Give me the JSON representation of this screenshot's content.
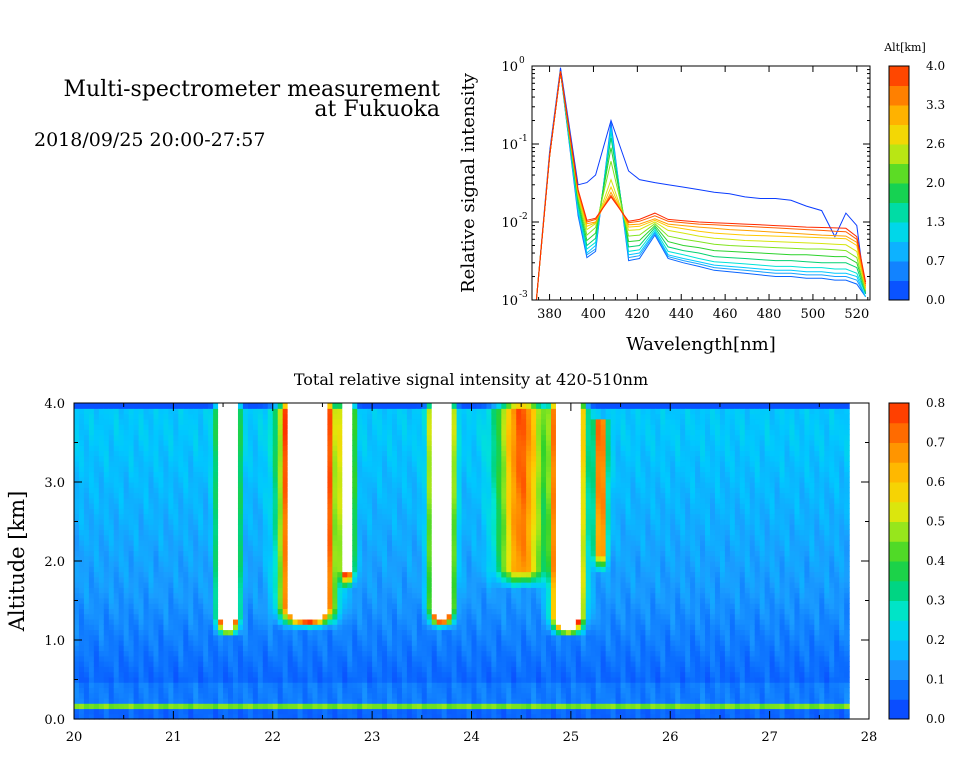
{
  "header": {
    "title_line1": "Multi-spectrometer measurement",
    "title_line2": "at Fukuoka",
    "datetime": "2018/09/25 20:00-27:57"
  },
  "colors": {
    "scale": [
      "#0a3cff",
      "#0a6aff",
      "#1a9cff",
      "#00c8ff",
      "#00e6d2",
      "#00d278",
      "#2cd22c",
      "#8ce61e",
      "#e6e60a",
      "#ffc800",
      "#ff9c00",
      "#ff6400",
      "#ff2a00"
    ],
    "overflow": "#ffffff",
    "frame": "#000000"
  },
  "chart_data": [
    {
      "type": "line",
      "xlabel": "Wavelength[nm]",
      "ylabel": "Relative signal intensity",
      "scale": "log-y",
      "xlim": [
        372,
        526
      ],
      "ylim": [
        0.001,
        1
      ],
      "xticks": [
        380,
        400,
        420,
        440,
        460,
        480,
        500,
        520
      ],
      "yticks": [
        {
          "value": 0.001,
          "base": "10",
          "exp": "-3"
        },
        {
          "value": 0.01,
          "base": "10",
          "exp": "-2"
        },
        {
          "value": 0.1,
          "base": "10",
          "exp": "-1"
        },
        {
          "value": 1,
          "base": "10",
          "exp": "0"
        }
      ],
      "x": [
        374,
        380,
        385,
        393,
        397,
        401,
        408,
        416,
        421,
        428,
        434,
        441,
        448,
        455,
        462,
        469,
        476,
        483,
        490,
        497,
        504,
        510,
        515,
        520,
        524
      ],
      "colorbar": {
        "label": "Alt[km]",
        "range": [
          0,
          4
        ],
        "ticks": [
          "0.0",
          "0.7",
          "1.3",
          "2.0",
          "2.6",
          "3.3",
          "4.0"
        ]
      },
      "series": [
        {
          "alt": 0.0,
          "values": [
            0.001,
            0.08,
            0.95,
            0.03,
            0.032,
            0.04,
            0.2,
            0.045,
            0.035,
            0.032,
            0.03,
            0.028,
            0.026,
            0.024,
            0.023,
            0.021,
            0.02,
            0.02,
            0.019,
            0.016,
            0.014,
            0.0065,
            0.013,
            0.009,
            0.0012
          ]
        },
        {
          "alt": 0.3,
          "values": [
            0.001,
            0.07,
            0.85,
            0.012,
            0.0035,
            0.0042,
            0.19,
            0.0032,
            0.0034,
            0.0068,
            0.0034,
            0.003,
            0.0027,
            0.0024,
            0.0023,
            0.0022,
            0.0021,
            0.002,
            0.002,
            0.0019,
            0.0019,
            0.0018,
            0.0018,
            0.0016,
            0.0011
          ]
        },
        {
          "alt": 0.7,
          "values": [
            0.001,
            0.07,
            0.85,
            0.013,
            0.0038,
            0.0045,
            0.17,
            0.0035,
            0.0037,
            0.0072,
            0.0036,
            0.0032,
            0.0029,
            0.0026,
            0.0025,
            0.0024,
            0.0023,
            0.0022,
            0.0022,
            0.0021,
            0.0021,
            0.002,
            0.002,
            0.0018,
            0.0011
          ]
        },
        {
          "alt": 1.0,
          "values": [
            0.001,
            0.07,
            0.85,
            0.014,
            0.004,
            0.005,
            0.16,
            0.0038,
            0.004,
            0.0075,
            0.0038,
            0.0034,
            0.0031,
            0.0028,
            0.0027,
            0.0026,
            0.0025,
            0.0024,
            0.0024,
            0.0023,
            0.0023,
            0.0022,
            0.0022,
            0.002,
            0.0011
          ]
        },
        {
          "alt": 1.3,
          "values": [
            0.001,
            0.07,
            0.85,
            0.015,
            0.0045,
            0.0055,
            0.14,
            0.0042,
            0.0044,
            0.008,
            0.0042,
            0.0038,
            0.0034,
            0.0031,
            0.003,
            0.0029,
            0.0028,
            0.0027,
            0.0027,
            0.0026,
            0.0026,
            0.0025,
            0.0025,
            0.0022,
            0.0012
          ]
        },
        {
          "alt": 1.7,
          "values": [
            0.001,
            0.07,
            0.85,
            0.017,
            0.005,
            0.0062,
            0.12,
            0.0048,
            0.005,
            0.0085,
            0.0048,
            0.0043,
            0.004,
            0.0036,
            0.0035,
            0.0034,
            0.0033,
            0.0032,
            0.0032,
            0.0031,
            0.003,
            0.003,
            0.003,
            0.0026,
            0.0012
          ]
        },
        {
          "alt": 2.0,
          "values": [
            0.001,
            0.07,
            0.85,
            0.019,
            0.0058,
            0.0072,
            0.09,
            0.0056,
            0.0058,
            0.009,
            0.0056,
            0.005,
            0.0047,
            0.0043,
            0.0042,
            0.0041,
            0.004,
            0.0039,
            0.0038,
            0.0038,
            0.0037,
            0.0036,
            0.0036,
            0.003,
            0.0013
          ]
        },
        {
          "alt": 2.3,
          "values": [
            0.001,
            0.07,
            0.85,
            0.021,
            0.0068,
            0.0085,
            0.06,
            0.0066,
            0.0068,
            0.0095,
            0.0066,
            0.006,
            0.0056,
            0.0052,
            0.005,
            0.0049,
            0.0048,
            0.0047,
            0.0046,
            0.0045,
            0.0045,
            0.0044,
            0.0043,
            0.0035,
            0.0013
          ]
        },
        {
          "alt": 2.6,
          "values": [
            0.001,
            0.07,
            0.85,
            0.022,
            0.008,
            0.0095,
            0.035,
            0.0078,
            0.008,
            0.01,
            0.0078,
            0.0072,
            0.0066,
            0.0062,
            0.006,
            0.0058,
            0.0057,
            0.0056,
            0.0055,
            0.0054,
            0.0053,
            0.0052,
            0.0051,
            0.0042,
            0.0014
          ]
        },
        {
          "alt": 3.0,
          "values": [
            0.001,
            0.07,
            0.85,
            0.023,
            0.0088,
            0.0098,
            0.028,
            0.0086,
            0.0088,
            0.0105,
            0.0088,
            0.0082,
            0.0076,
            0.0072,
            0.007,
            0.0068,
            0.0067,
            0.0066,
            0.0065,
            0.0064,
            0.0063,
            0.0062,
            0.0061,
            0.005,
            0.0014
          ]
        },
        {
          "alt": 3.3,
          "values": [
            0.001,
            0.07,
            0.85,
            0.024,
            0.0095,
            0.01,
            0.024,
            0.0092,
            0.0094,
            0.011,
            0.0094,
            0.009,
            0.0086,
            0.0083,
            0.008,
            0.0078,
            0.0076,
            0.0074,
            0.0072,
            0.007,
            0.0068,
            0.0067,
            0.0066,
            0.0055,
            0.0015
          ]
        },
        {
          "alt": 3.7,
          "values": [
            0.001,
            0.07,
            0.85,
            0.025,
            0.01,
            0.0108,
            0.022,
            0.0098,
            0.0102,
            0.012,
            0.0102,
            0.0098,
            0.0094,
            0.0092,
            0.009,
            0.0088,
            0.0086,
            0.0084,
            0.0082,
            0.008,
            0.0078,
            0.0076,
            0.0075,
            0.006,
            0.0016
          ]
        },
        {
          "alt": 4.0,
          "values": [
            0.001,
            0.07,
            0.85,
            0.026,
            0.0105,
            0.0112,
            0.021,
            0.0102,
            0.0108,
            0.013,
            0.0108,
            0.0104,
            0.01,
            0.0098,
            0.0096,
            0.0094,
            0.0092,
            0.009,
            0.0088,
            0.0086,
            0.0085,
            0.0084,
            0.0083,
            0.0065,
            0.0017
          ]
        }
      ]
    },
    {
      "type": "heatmap",
      "title": "Total relative signal intensity at 420-510nm",
      "xlabel": "",
      "ylabel": "Altitude [km]",
      "xlim": [
        20,
        28
      ],
      "ylim": [
        0,
        4
      ],
      "data_x_range": [
        20,
        27.8
      ],
      "xticks": [
        "20",
        "21",
        "22",
        "23",
        "24",
        "25",
        "26",
        "27",
        "28"
      ],
      "yticks": [
        "0.0",
        "1.0",
        "2.0",
        "3.0",
        "4.0"
      ],
      "colorbar": {
        "range": [
          0,
          0.8
        ],
        "ticks": [
          "0.0",
          "0.1",
          "0.2",
          "0.3",
          "0.4",
          "0.5",
          "0.6",
          "0.7",
          "0.8"
        ]
      },
      "background": {
        "low": 0.06,
        "mid": 0.13,
        "upper": 0.2,
        "surface_band": 0.45
      },
      "plumes": [
        {
          "t": 21.55,
          "half_width_hours": 0.08,
          "base_km": 1.2,
          "top_km": 4.0,
          "peak": 2.0
        },
        {
          "t": 22.35,
          "half_width_hours": 0.2,
          "base_km": 1.3,
          "top_km": 4.0,
          "peak": 2.0
        },
        {
          "t": 22.75,
          "half_width_hours": 0.06,
          "base_km": 1.8,
          "top_km": 4.0,
          "peak": 0.9
        },
        {
          "t": 23.7,
          "half_width_hours": 0.09,
          "base_km": 1.3,
          "top_km": 4.0,
          "peak": 2.0
        },
        {
          "t": 24.5,
          "half_width_hours": 0.22,
          "base_km": 1.8,
          "top_km": 4.0,
          "peak": 0.55
        },
        {
          "t": 24.97,
          "half_width_hours": 0.12,
          "base_km": 1.2,
          "top_km": 4.0,
          "peak": 2.0
        },
        {
          "t": 25.3,
          "half_width_hours": 0.06,
          "base_km": 2.0,
          "top_km": 3.8,
          "peak": 0.6
        }
      ]
    }
  ]
}
